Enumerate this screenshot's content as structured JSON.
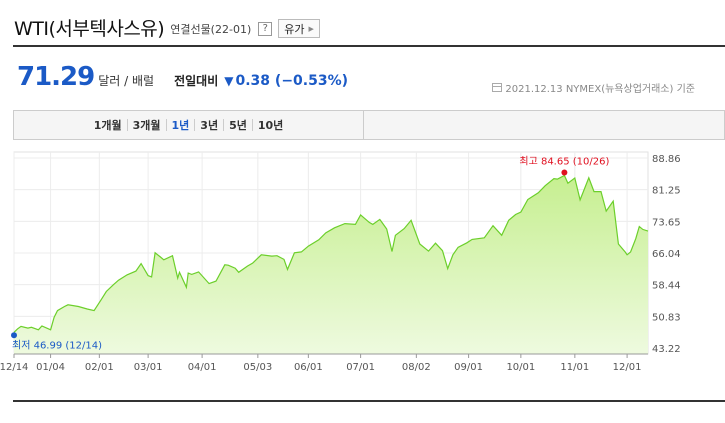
{
  "header": {
    "title": "WTI(서부텍사스유)",
    "code": "연결선물(22-01)",
    "help": "?",
    "type_button": "유가"
  },
  "quote": {
    "price": "71.29",
    "unit": "달러 / 배럴",
    "compare_label": "전일대비",
    "change": "0.38 (−0.53%)",
    "date_info": "2021.12.13  NYMEX(뉴욕상업거래소) 기준"
  },
  "tabs": [
    {
      "label": "1개월",
      "active": false
    },
    {
      "label": "3개월",
      "active": false
    },
    {
      "label": "1년",
      "active": true
    },
    {
      "label": "3년",
      "active": false
    },
    {
      "label": "5년",
      "active": false
    },
    {
      "label": "10년",
      "active": false
    }
  ],
  "colors": {
    "accent": "#1b5ac6",
    "line": "#6ccf2b",
    "fill_top": "#c6ef90",
    "fill_bottom": "#eefadf",
    "high_marker": "#e01020",
    "low_marker": "#1b5ac6"
  },
  "chart_data": {
    "type": "area",
    "y_ticks": [
      "88.86",
      "81.25",
      "73.65",
      "66.04",
      "58.44",
      "50.83",
      "43.22"
    ],
    "ylim": [
      43.22,
      88.86
    ],
    "x_ticks": [
      "12/14",
      "01/04",
      "02/01",
      "03/01",
      "04/01",
      "05/03",
      "06/01",
      "07/01",
      "08/02",
      "09/01",
      "10/01",
      "11/01",
      "12/01"
    ],
    "high_label": "최고  84.65 (10/26)",
    "low_label": "최저  46.99 (12/14)",
    "grid": true,
    "series": [
      {
        "x": [
          "12/14",
          "12/16",
          "12/18",
          "12/22",
          "12/24",
          "12/28",
          "12/30",
          "01/04",
          "01/06",
          "01/08",
          "01/12",
          "01/14",
          "01/20",
          "01/25",
          "01/29",
          "02/02",
          "02/05",
          "02/09",
          "02/12",
          "02/17",
          "02/22",
          "02/25",
          "03/01",
          "03/03",
          "03/05",
          "03/08",
          "03/10",
          "03/15",
          "03/18",
          "03/19",
          "03/23",
          "03/24",
          "03/26",
          "03/30",
          "04/05",
          "04/09",
          "04/14",
          "04/16",
          "04/20",
          "04/22",
          "04/27",
          "04/30",
          "05/05",
          "05/11",
          "05/14",
          "05/18",
          "05/20",
          "05/24",
          "05/28",
          "06/01",
          "06/07",
          "06/11",
          "06/16",
          "06/22",
          "06/28",
          "07/01",
          "07/06",
          "07/08",
          "07/12",
          "07/16",
          "07/19",
          "07/21",
          "07/26",
          "07/30",
          "08/04",
          "08/09",
          "08/13",
          "08/17",
          "08/20",
          "08/23",
          "08/26",
          "08/31",
          "09/03",
          "09/10",
          "09/15",
          "09/20",
          "09/24",
          "09/28",
          "10/01",
          "10/05",
          "10/11",
          "10/15",
          "10/20",
          "10/22",
          "10/26",
          "10/28",
          "11/01",
          "11/04",
          "11/09",
          "11/12",
          "11/16",
          "11/19",
          "11/23",
          "11/26",
          "11/30",
          "12/01",
          "12/03",
          "12/06",
          "12/08",
          "12/10",
          "12/13"
        ],
        "values": [
          46.99,
          47.8,
          48.4,
          48.0,
          48.2,
          47.6,
          48.5,
          47.6,
          50.6,
          52.2,
          53.2,
          53.6,
          53.2,
          52.6,
          52.2,
          54.8,
          56.8,
          58.4,
          59.5,
          60.8,
          61.7,
          63.5,
          60.6,
          60.3,
          66.1,
          65.1,
          64.4,
          65.4,
          60.0,
          61.4,
          57.8,
          61.2,
          60.9,
          61.5,
          58.7,
          59.3,
          63.2,
          63.1,
          62.4,
          61.4,
          62.9,
          63.6,
          65.6,
          65.3,
          65.4,
          64.5,
          62.1,
          66.1,
          66.3,
          67.7,
          69.2,
          70.9,
          72.1,
          73.1,
          72.9,
          75.2,
          73.4,
          72.9,
          74.1,
          71.8,
          66.4,
          70.3,
          71.9,
          73.9,
          68.2,
          66.5,
          68.4,
          66.6,
          62.3,
          65.6,
          67.4,
          68.5,
          69.3,
          69.7,
          72.6,
          70.3,
          73.9,
          75.3,
          75.9,
          78.9,
          80.5,
          82.2,
          83.9,
          83.8,
          84.65,
          82.8,
          84.05,
          78.8,
          84.1,
          80.8,
          80.8,
          76.1,
          78.5,
          68.2,
          66.2,
          65.6,
          66.3,
          69.5,
          72.4,
          71.7,
          71.29
        ]
      }
    ]
  }
}
